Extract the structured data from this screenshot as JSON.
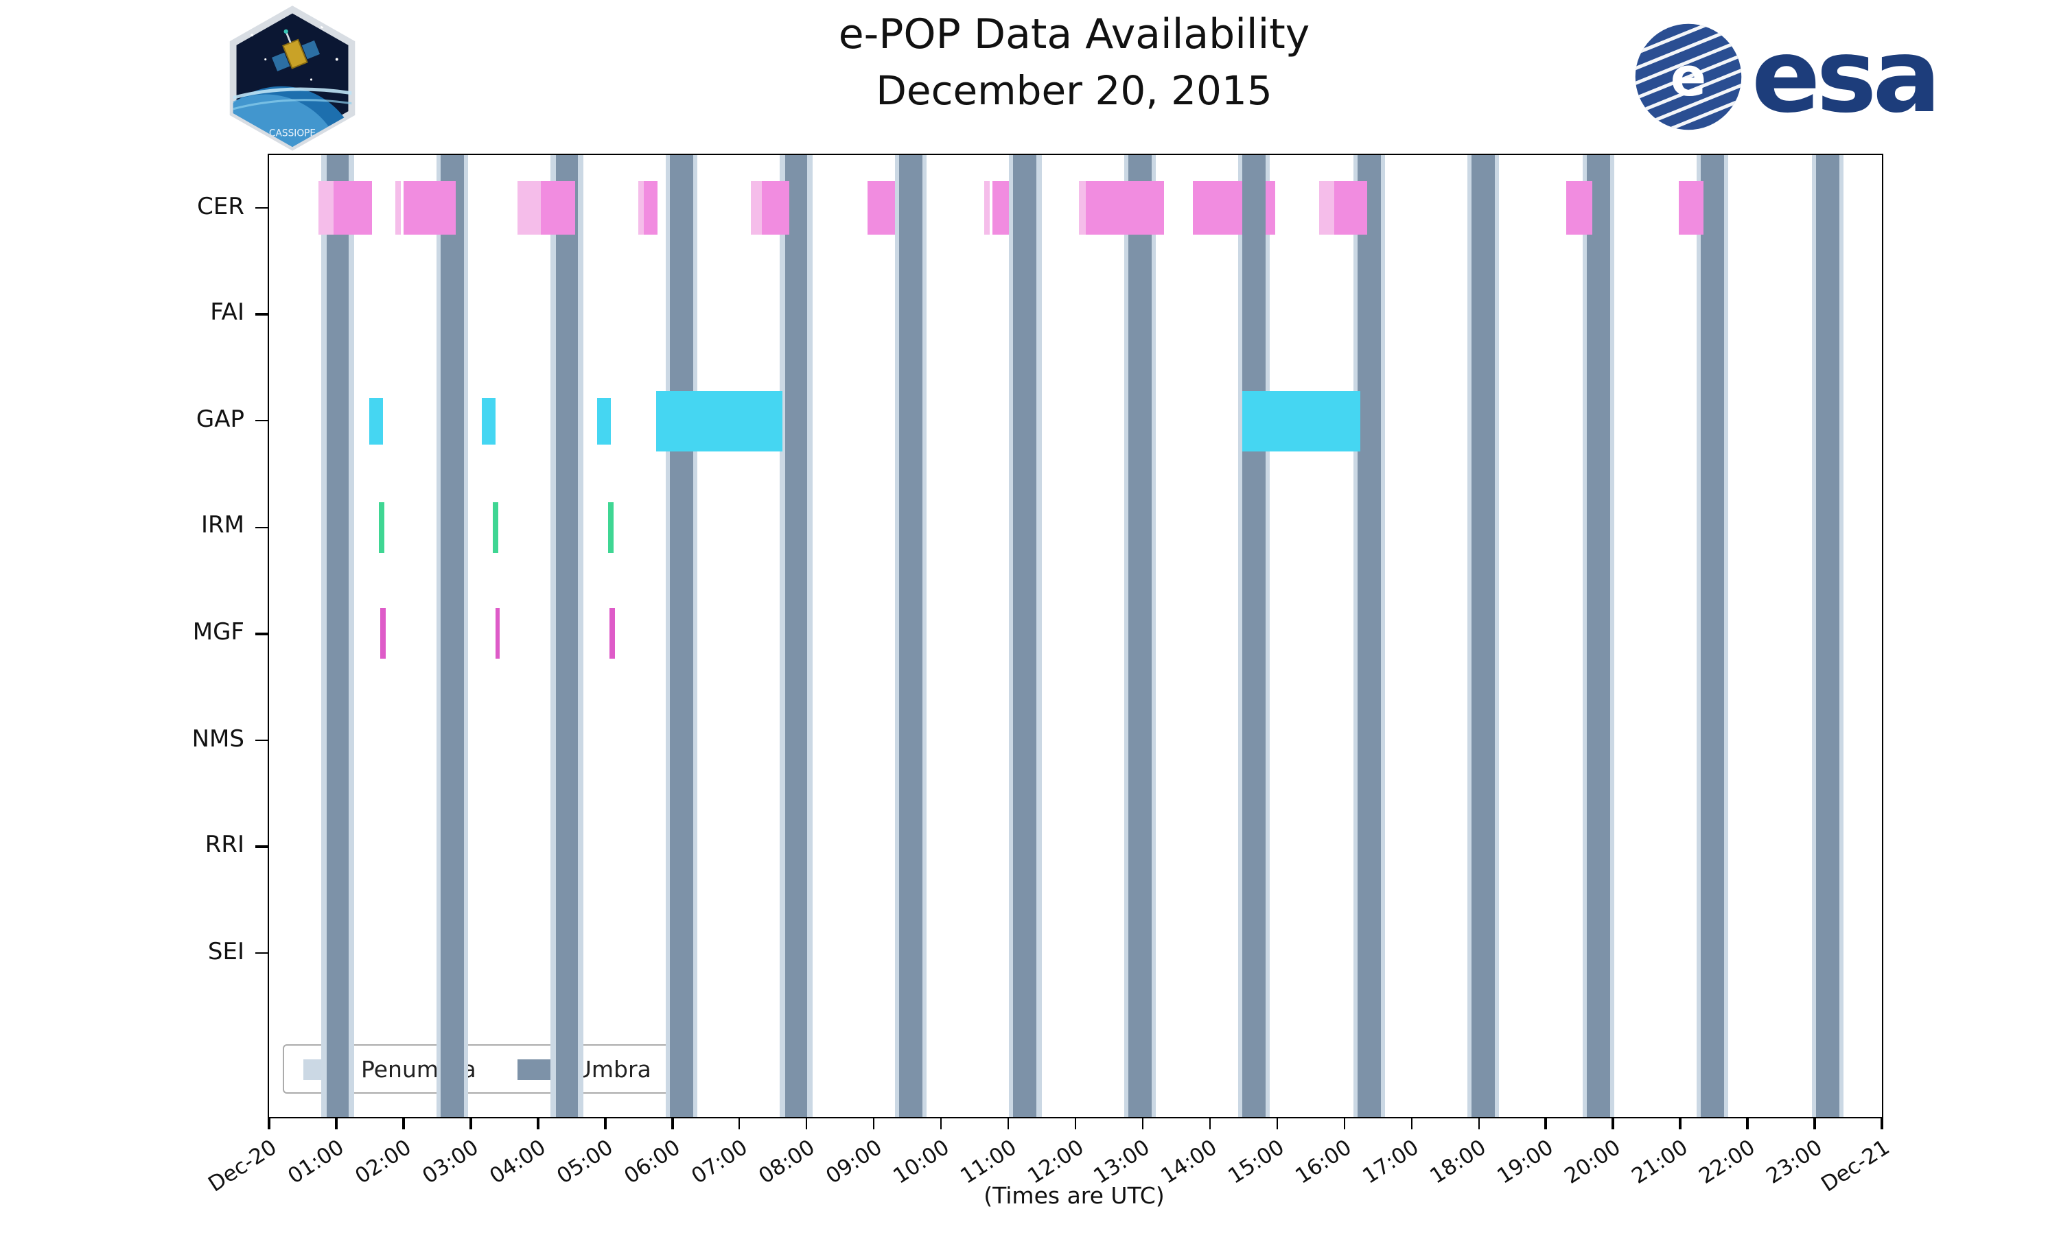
{
  "logos": {
    "patch_text": "CASSIOPE",
    "esa_text": "esa",
    "esa_blue": "#1d3d7b"
  },
  "chart_data": {
    "type": "gantt-availability",
    "title": "e-POP Data Availability",
    "subtitle": "December 20, 2015",
    "caption": "(Times are UTC)",
    "x_axis": {
      "start_label": "Dec-20",
      "end_label": "Dec-21",
      "hours": [
        "01:00",
        "02:00",
        "03:00",
        "04:00",
        "05:00",
        "06:00",
        "07:00",
        "08:00",
        "09:00",
        "10:00",
        "11:00",
        "12:00",
        "13:00",
        "14:00",
        "15:00",
        "16:00",
        "17:00",
        "18:00",
        "19:00",
        "20:00",
        "21:00",
        "22:00",
        "23:00"
      ],
      "range_hours": [
        0,
        24
      ]
    },
    "instruments": [
      "CER",
      "FAI",
      "GAP",
      "IRM",
      "MGF",
      "NMS",
      "RRI",
      "SEI"
    ],
    "penumbra": {
      "color": "#cbd8e4",
      "pad_hours": 0.07
    },
    "umbra": {
      "color": "#7d92a8",
      "intervals": [
        [
          0.85,
          1.19
        ],
        [
          2.56,
          2.9
        ],
        [
          4.26,
          4.6
        ],
        [
          5.97,
          6.31
        ],
        [
          7.67,
          8.01
        ],
        [
          9.38,
          9.72
        ],
        [
          11.08,
          11.42
        ],
        [
          12.79,
          13.13
        ],
        [
          14.49,
          14.83
        ],
        [
          16.2,
          16.54
        ],
        [
          17.9,
          18.24
        ],
        [
          19.61,
          19.95
        ],
        [
          21.31,
          21.65
        ],
        [
          23.02,
          23.36
        ]
      ]
    },
    "series": [
      {
        "instrument": "CER",
        "color": "#f18ce0",
        "light_color": "#f5bdea",
        "height": 39,
        "intervals": [
          {
            "s": 0.73,
            "e": 0.97,
            "shade": "light"
          },
          {
            "s": 0.97,
            "e": 1.53,
            "shade": "dark"
          },
          {
            "s": 1.88,
            "e": 1.97,
            "shade": "light"
          },
          {
            "s": 2.01,
            "e": 2.78,
            "shade": "dark"
          },
          {
            "s": 3.69,
            "e": 4.04,
            "shade": "light"
          },
          {
            "s": 4.04,
            "e": 4.56,
            "shade": "dark"
          },
          {
            "s": 5.5,
            "e": 5.58,
            "shade": "light"
          },
          {
            "s": 5.58,
            "e": 5.78,
            "shade": "dark"
          },
          {
            "s": 7.16,
            "e": 7.33,
            "shade": "light"
          },
          {
            "s": 7.33,
            "e": 7.74,
            "shade": "dark"
          },
          {
            "s": 8.91,
            "e": 9.31,
            "shade": "dark"
          },
          {
            "s": 10.65,
            "e": 10.73,
            "shade": "light"
          },
          {
            "s": 10.77,
            "e": 11.01,
            "shade": "dark"
          },
          {
            "s": 12.06,
            "e": 12.16,
            "shade": "light"
          },
          {
            "s": 12.16,
            "e": 13.31,
            "shade": "dark"
          },
          {
            "s": 13.75,
            "e": 14.49,
            "shade": "dark"
          },
          {
            "s": 14.83,
            "e": 14.98,
            "shade": "dark"
          },
          {
            "s": 15.63,
            "e": 15.85,
            "shade": "light"
          },
          {
            "s": 15.85,
            "e": 16.35,
            "shade": "dark"
          },
          {
            "s": 19.31,
            "e": 19.7,
            "shade": "dark"
          },
          {
            "s": 20.97,
            "e": 21.35,
            "shade": "dark"
          }
        ]
      },
      {
        "instrument": "GAP",
        "color": "#45d6f2",
        "height": 34,
        "intervals": [
          {
            "s": 1.49,
            "e": 1.69,
            "h": 34
          },
          {
            "s": 3.17,
            "e": 3.37,
            "h": 34
          },
          {
            "s": 4.88,
            "e": 5.08,
            "h": 34
          },
          {
            "s": 5.75,
            "e": 7.64,
            "h": 44
          },
          {
            "s": 14.48,
            "e": 16.23,
            "h": 44
          }
        ]
      },
      {
        "instrument": "IRM",
        "color": "#3fd693",
        "height": 37,
        "intervals": [
          {
            "s": 1.63,
            "e": 1.71
          },
          {
            "s": 3.33,
            "e": 3.41
          },
          {
            "s": 5.04,
            "e": 5.12
          }
        ]
      },
      {
        "instrument": "MGF",
        "color": "#de5bc8",
        "height": 37,
        "intervals": [
          {
            "s": 1.66,
            "e": 1.74
          },
          {
            "s": 3.36,
            "e": 3.44
          },
          {
            "s": 5.06,
            "e": 5.14
          }
        ]
      }
    ],
    "legend": [
      {
        "label": "Penumbra",
        "color": "#cbd8e4"
      },
      {
        "label": "Umbra",
        "color": "#7d92a8"
      }
    ]
  }
}
